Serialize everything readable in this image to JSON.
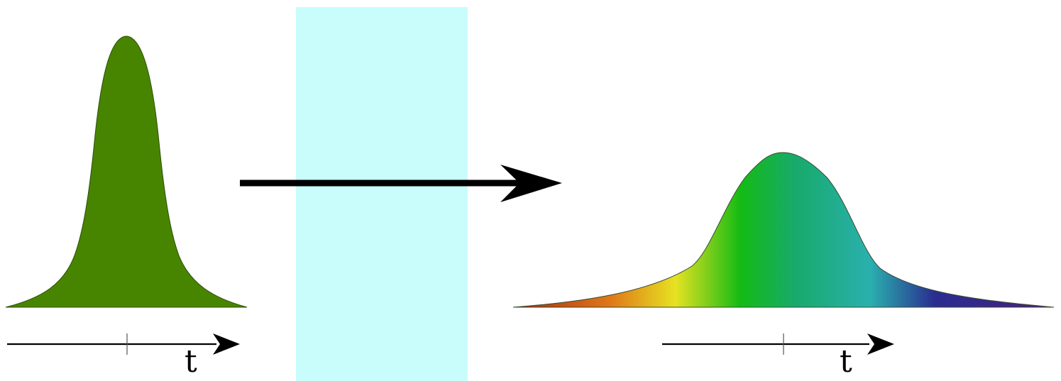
{
  "input_pulse": {
    "color": "#478500",
    "axis_label": "t"
  },
  "dispersive_medium": {
    "color": "#c8fdfc"
  },
  "propagation_arrow": {
    "color": "#000000"
  },
  "output_pulse": {
    "spectrum_colors": [
      "#a42a10",
      "#e07818",
      "#e6e222",
      "#14bb14",
      "#17aa6a",
      "#2ab0ae",
      "#2a2d90",
      "#4a2080"
    ],
    "axis_label": "t"
  }
}
